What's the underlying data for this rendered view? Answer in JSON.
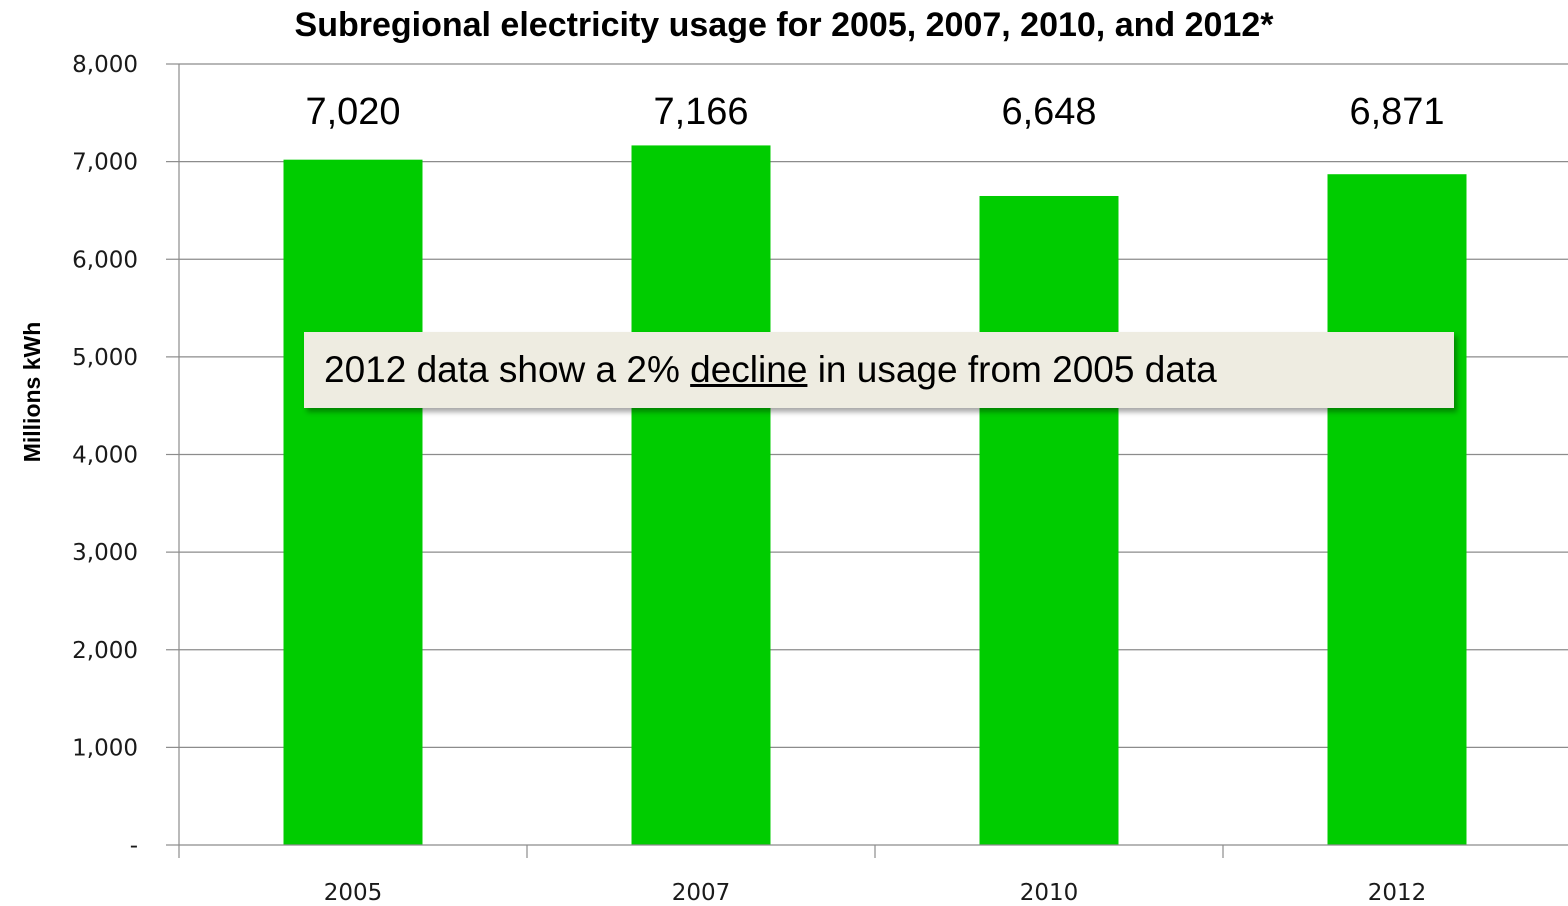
{
  "chart_data": {
    "type": "bar",
    "title": "Subregional electricity usage for 2005, 2007, 2010, and 2012*",
    "xlabel": "",
    "ylabel": "Millions kWh",
    "categories": [
      "2005",
      "2007",
      "2010",
      "2012"
    ],
    "values": [
      7020,
      7166,
      6648,
      6871
    ],
    "data_labels": [
      "7,020",
      "7,166",
      "6,648",
      "6,871"
    ],
    "ylim": [
      0,
      8000
    ],
    "yticks": [
      0,
      1000,
      2000,
      3000,
      4000,
      5000,
      6000,
      7000,
      8000
    ],
    "ytick_labels": [
      "-",
      "1,000",
      "2,000",
      "3,000",
      "4,000",
      "5,000",
      "6,000",
      "7,000",
      "8,000"
    ],
    "grid": true,
    "bar_color": "#00cc00",
    "annotation": {
      "before": "2012 data show a 2% ",
      "emphasis": "decline",
      "after": " in usage from 2005 data"
    }
  }
}
